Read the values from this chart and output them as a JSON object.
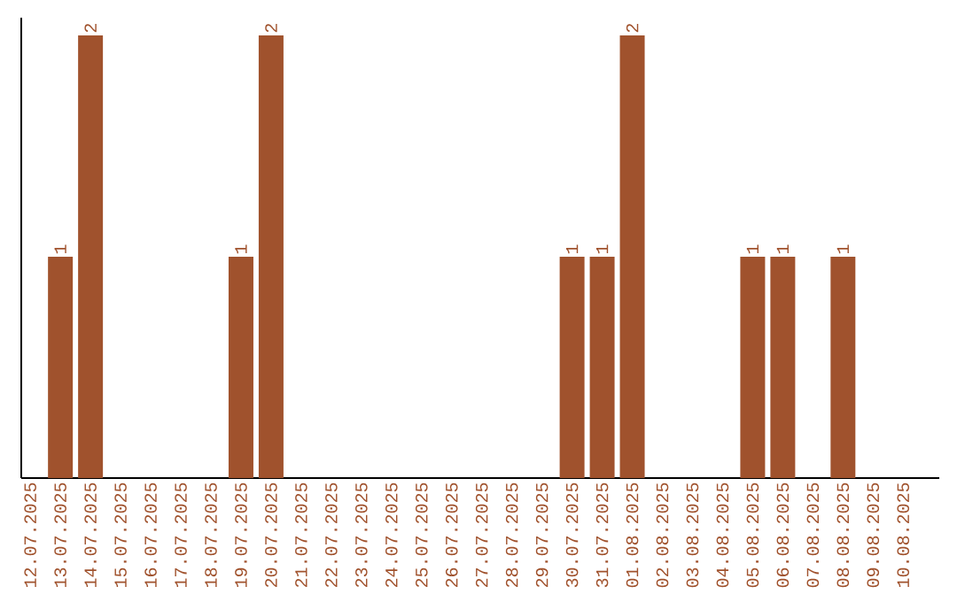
{
  "chart_data": {
    "type": "bar",
    "color": "#a0522d",
    "categories": [
      "12.07.2025",
      "13.07.2025",
      "14.07.2025",
      "15.07.2025",
      "16.07.2025",
      "17.07.2025",
      "18.07.2025",
      "19.07.2025",
      "20.07.2025",
      "21.07.2025",
      "22.07.2025",
      "23.07.2025",
      "24.07.2025",
      "25.07.2025",
      "26.07.2025",
      "27.07.2025",
      "28.07.2025",
      "29.07.2025",
      "30.07.2025",
      "31.07.2025",
      "01.08.2025",
      "02.08.2025",
      "03.08.2025",
      "04.08.2025",
      "05.08.2025",
      "06.08.2025",
      "07.08.2025",
      "08.08.2025",
      "09.08.2025",
      "10.08.2025"
    ],
    "values": [
      0,
      1,
      2,
      0,
      0,
      0,
      0,
      1,
      2,
      0,
      0,
      0,
      0,
      0,
      0,
      0,
      0,
      0,
      1,
      1,
      2,
      0,
      0,
      0,
      1,
      1,
      0,
      1,
      0,
      0
    ],
    "value_labels": [
      null,
      "1",
      "2",
      null,
      null,
      null,
      null,
      "1",
      "2",
      null,
      null,
      null,
      null,
      null,
      null,
      null,
      null,
      null,
      "1",
      "1",
      "2",
      null,
      null,
      null,
      "1",
      "1",
      null,
      "1",
      null,
      null
    ]
  }
}
